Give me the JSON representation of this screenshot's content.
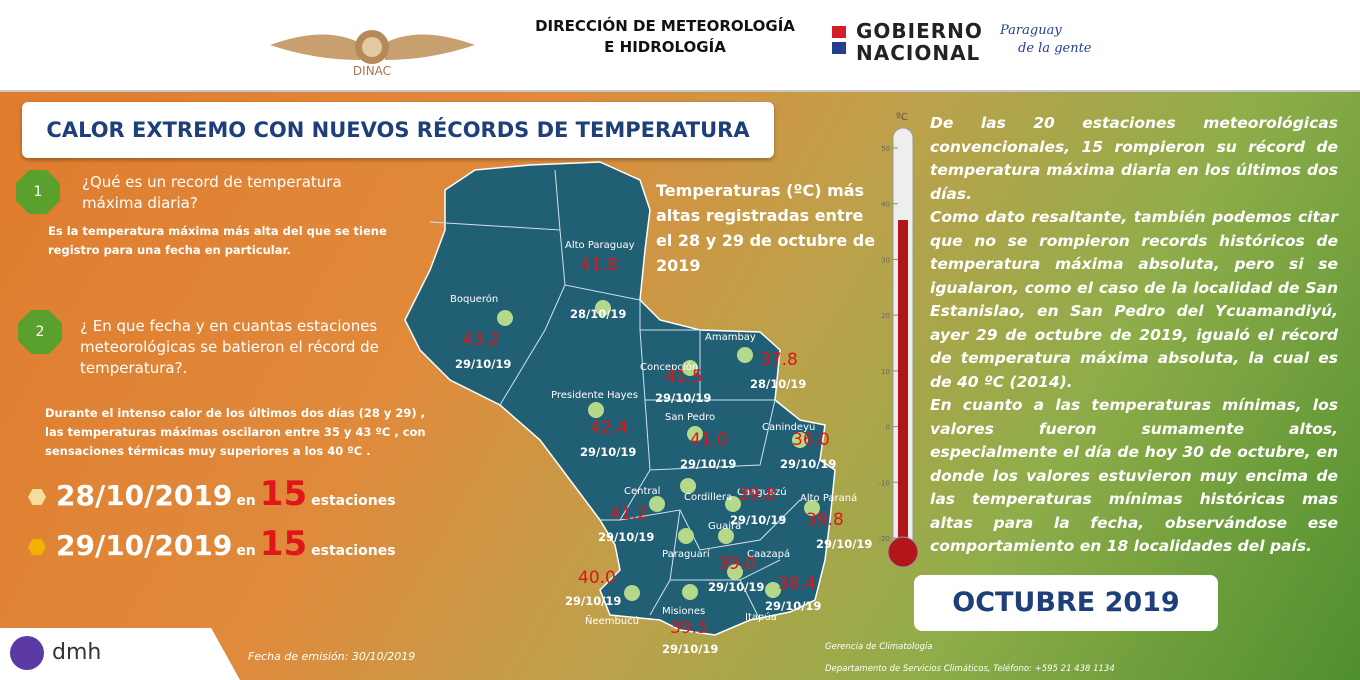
{
  "header": {
    "emblem": "DINAC",
    "org_line1": "DIRECCIÓN DE METEOROLOGÍA",
    "org_line2": "E HIDROLOGÍA",
    "gov_line1": "GOBIERNO",
    "gov_line2": "NACIONAL",
    "slogan_line1": "Paraguay",
    "slogan_line2": "de la gente"
  },
  "title": "CALOR EXTREMO CON NUEVOS RÉCORDS DE TEMPERATURA",
  "questions": [
    {
      "number": "1",
      "question": "¿Qué es un record de temperatura máxima diaria?",
      "answer": "Es la temperatura máxima  más alta del que se tiene registro para una fecha en particular."
    },
    {
      "number": "2",
      "question": "¿ En que fecha y en cuantas estaciones meteorológicas se batieron el récord de temperatura?.",
      "answer": "Durante el intenso calor de los últimos dos días (28 y 29) , las temperaturas máximas oscilaron entre 35 y 43 ºC , con sensaciones térmicas muy superiores a los 40 ºC ."
    }
  ],
  "records": [
    {
      "date": "28/10/2019",
      "connector": "en",
      "count": 15,
      "unit": "estaciones"
    },
    {
      "date": "29/10/2019",
      "connector": "en",
      "count": 15,
      "unit": "estaciones"
    }
  ],
  "map": {
    "caption": "Temperaturas (ºC) más altas registradas entre el 28 y 29 de octubre de 2019",
    "stations": [
      {
        "name": "Alto Paraguay",
        "value": "41.8",
        "date": "28/10/19"
      },
      {
        "name": "Boquerón",
        "value": "43.2",
        "date": "29/10/19"
      },
      {
        "name": "Amambay",
        "value": "37.8",
        "date": "28/10/19"
      },
      {
        "name": "Concepción",
        "value": "41.5",
        "date": "29/10/19"
      },
      {
        "name": "Presidente Hayes",
        "value": "42.4",
        "date": "29/10/19"
      },
      {
        "name": "San Pedro",
        "value": "41.0",
        "date": "29/10/19"
      },
      {
        "name": "Canindeyú",
        "value": "36.0",
        "date": "29/10/19"
      },
      {
        "name": "Central",
        "value": "41.2",
        "date": "29/10/19"
      },
      {
        "name": "Caaguazú",
        "value": "39.8",
        "date": "29/10/19"
      },
      {
        "name": "Alto Paraná",
        "value": "39.8",
        "date": "29/10/19"
      },
      {
        "name": "Caazapá",
        "value": "39.0",
        "date": "29/10/19"
      },
      {
        "name": "Itapúa",
        "value": "38.4",
        "date": "29/10/19"
      },
      {
        "name": "Ñeembucú",
        "value": "40.0",
        "date": "29/10/19"
      },
      {
        "name": "Misiones",
        "value": "39.5",
        "date": "29/10/19"
      }
    ],
    "other_labels": [
      "Cordillera",
      "Guairá",
      "Paraguarí"
    ]
  },
  "thermometer": {
    "unit": "ºC",
    "ticks": [
      50,
      40,
      30,
      20,
      10,
      0,
      -10,
      -20
    ]
  },
  "summary": [
    "De las 20 estaciones meteorológicas convencionales, 15 rompieron su récord de temperatura máxima diaria en los últimos dos días.",
    "Como dato resaltante, también podemos citar que no se rompieron records históricos de temperatura máxima absoluta, pero si se igualaron, como el caso de la localidad de San Estanislao, en San Pedro del Ycuamandiyú, ayer 29 de octubre de 2019, igualó el récord de temperatura máxima absoluta, la cual es de 40 ºC (2014).",
    "En cuanto a las temperaturas mínimas, los valores fueron sumamente altos, especialmente el día de hoy 30 de octubre, en donde los valores estuvieron muy encima de las temperaturas mínimas históricas mas altas para la fecha, observándose ese comportamiento en 18 localidades del país."
  ],
  "month_badge": "OCTUBRE 2019",
  "footer": {
    "logo": "dmh",
    "issued": "Fecha de emisión:  30/10/2019",
    "dept_line1": "Gerencia de Climatología",
    "dept_line2": "Departamento de Servicios Climáticos, Teléfono: +595 21 438 1134"
  }
}
